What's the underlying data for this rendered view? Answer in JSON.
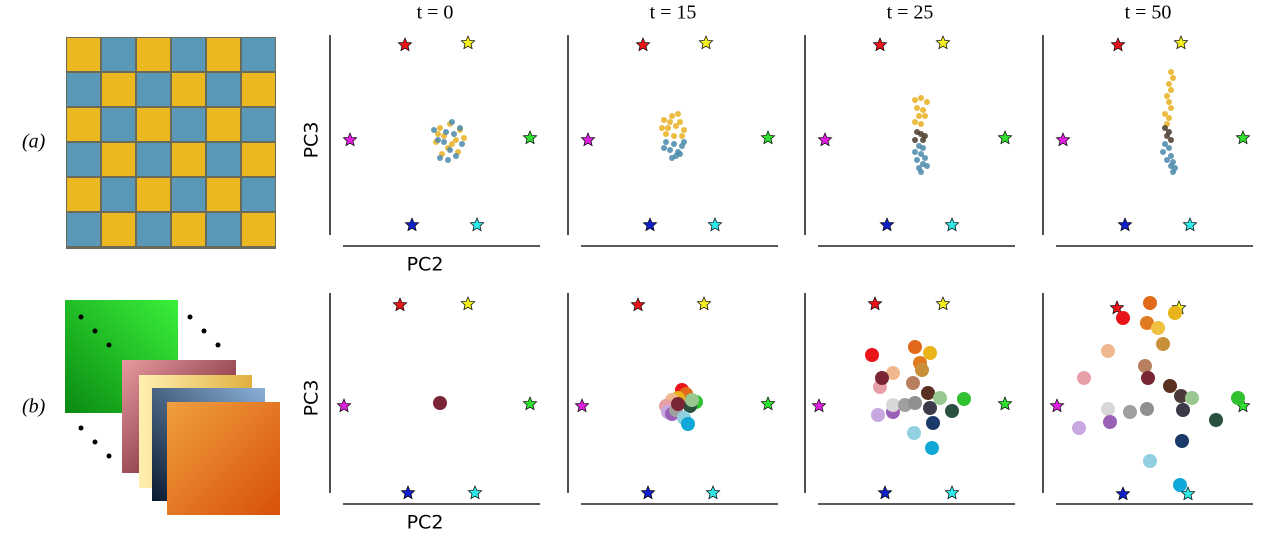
{
  "row_labels": [
    "(a)",
    "(b)"
  ],
  "chart_data": [
    {
      "type": "scatter",
      "title": "t = 0",
      "xlabel": "PC2",
      "ylabel": "PC3",
      "xlim": [
        0,
        10
      ],
      "ylim": [
        0,
        10
      ],
      "series": [
        {
          "marker": "star",
          "marker_size": 7,
          "x": [
            3.25,
            6.4,
            0.5,
            9.5,
            3.6,
            6.85
          ],
          "y": [
            9.75,
            9.85,
            5.0,
            5.1,
            0.75,
            0.75
          ],
          "colors": [
            "#e8141a",
            "#f5f020",
            "#e020e0",
            "#30e030",
            "#1020c8",
            "#30e8e8"
          ]
        },
        {
          "marker": "circle",
          "marker_size": 3,
          "color": "#e8b020",
          "x": [
            5.0,
            5.5,
            6.0,
            5.2,
            5.8,
            4.8,
            6.2,
            5.4,
            5.9,
            5.1,
            5.6,
            4.9
          ],
          "y": [
            5.6,
            5.8,
            5.5,
            5.2,
            5.0,
            4.9,
            5.1,
            4.6,
            4.4,
            4.3,
            4.8,
            5.3
          ]
        },
        {
          "marker": "circle",
          "marker_size": 3,
          "color": "#4a8aaa",
          "x": [
            5.3,
            5.7,
            4.9,
            6.1,
            5.5,
            5.0,
            5.8,
            5.2,
            6.0,
            4.7,
            5.4,
            5.6
          ],
          "y": [
            5.4,
            5.3,
            5.0,
            4.8,
            4.5,
            4.1,
            4.2,
            4.9,
            5.6,
            5.5,
            4.0,
            5.9
          ]
        }
      ]
    },
    {
      "type": "scatter",
      "title": "t = 15",
      "xlim": [
        0,
        10
      ],
      "ylim": [
        0,
        10
      ],
      "series": [
        {
          "marker": "star",
          "marker_size": 7,
          "x": [
            3.25,
            6.4,
            0.5,
            9.5,
            3.6,
            6.85
          ],
          "y": [
            9.75,
            9.85,
            5.0,
            5.1,
            0.75,
            0.75
          ],
          "colors": [
            "#e8141a",
            "#f5f020",
            "#e020e0",
            "#30e030",
            "#1020c8",
            "#30e8e8"
          ]
        },
        {
          "marker": "circle",
          "marker_size": 3,
          "color": "#4a8aaa",
          "x": [
            4.4,
            4.8,
            5.2,
            4.6,
            5.0,
            4.3,
            4.9,
            5.3,
            4.7,
            5.1
          ],
          "y": [
            4.9,
            4.8,
            4.7,
            4.5,
            4.4,
            4.6,
            4.2,
            4.9,
            4.1,
            4.3
          ]
        },
        {
          "marker": "circle",
          "marker_size": 3,
          "color": "#e8b020",
          "x": [
            4.3,
            4.7,
            5.1,
            4.5,
            4.9,
            5.3,
            4.4,
            4.8,
            5.2,
            4.6,
            5.0,
            4.2
          ],
          "y": [
            6.0,
            6.2,
            5.9,
            5.6,
            5.7,
            5.5,
            5.3,
            5.2,
            5.2,
            5.9,
            6.3,
            5.6
          ]
        }
      ]
    },
    {
      "type": "scatter",
      "title": "t = 25",
      "xlim": [
        0,
        10
      ],
      "ylim": [
        0,
        10
      ],
      "series": [
        {
          "marker": "star",
          "marker_size": 7,
          "x": [
            3.25,
            6.4,
            0.5,
            9.5,
            3.6,
            6.85
          ],
          "y": [
            9.75,
            9.85,
            5.0,
            5.1,
            0.75,
            0.75
          ],
          "colors": [
            "#e8141a",
            "#f5f020",
            "#e020e0",
            "#30e030",
            "#1020c8",
            "#30e8e8"
          ]
        },
        {
          "marker": "circle",
          "marker_size": 3,
          "color": "#e8b020",
          "x": [
            5.0,
            5.3,
            5.6,
            5.1,
            5.4,
            5.2,
            5.5,
            5.0,
            5.3
          ],
          "y": [
            7.0,
            7.1,
            6.9,
            6.6,
            6.5,
            6.2,
            6.2,
            5.9,
            5.8
          ]
        },
        {
          "marker": "circle",
          "marker_size": 3,
          "color": "#4a3a2a",
          "x": [
            5.1,
            5.3,
            5.5,
            5.0,
            5.4
          ],
          "y": [
            5.4,
            5.3,
            5.2,
            5.0,
            5.0
          ]
        },
        {
          "marker": "circle",
          "marker_size": 3,
          "color": "#4a8aaa",
          "x": [
            5.2,
            5.4,
            5.0,
            5.3,
            5.5,
            5.1,
            5.4,
            5.2,
            5.6,
            5.3
          ],
          "y": [
            4.7,
            4.6,
            4.4,
            4.3,
            4.1,
            4.0,
            3.8,
            3.6,
            3.7,
            3.4
          ]
        }
      ]
    },
    {
      "type": "scatter",
      "title": "t = 50",
      "xlim": [
        0,
        10
      ],
      "ylim": [
        0,
        10
      ],
      "series": [
        {
          "marker": "star",
          "marker_size": 7,
          "x": [
            3.25,
            6.4,
            0.5,
            9.5,
            3.6,
            6.85
          ],
          "y": [
            9.75,
            9.85,
            5.0,
            5.1,
            0.75,
            0.75
          ],
          "colors": [
            "#e8141a",
            "#f5f020",
            "#e020e0",
            "#30e030",
            "#1020c8",
            "#30e8e8"
          ]
        },
        {
          "marker": "circle",
          "marker_size": 3,
          "color": "#e8b020",
          "x": [
            5.9,
            6.0,
            5.8,
            5.9,
            5.7,
            5.8,
            5.9,
            5.6,
            5.8,
            5.7
          ],
          "y": [
            8.4,
            8.1,
            7.8,
            7.5,
            7.2,
            6.9,
            6.6,
            6.3,
            6.1,
            5.8
          ]
        },
        {
          "marker": "circle",
          "marker_size": 3,
          "color": "#4a3a2a",
          "x": [
            5.6,
            5.8,
            5.7,
            5.9
          ],
          "y": [
            5.6,
            5.4,
            5.2,
            5.0
          ]
        },
        {
          "marker": "circle",
          "marker_size": 3,
          "color": "#4a8aaa",
          "x": [
            5.6,
            5.8,
            5.5,
            5.9,
            5.7,
            6.0,
            5.9,
            6.1,
            6.0
          ],
          "y": [
            4.8,
            4.6,
            4.4,
            4.2,
            4.0,
            3.9,
            3.7,
            3.6,
            3.4
          ]
        }
      ]
    },
    {
      "type": "scatter",
      "xlabel": "PC2",
      "ylabel": "PC3",
      "xlim": [
        0,
        10
      ],
      "ylim": [
        0,
        10
      ],
      "series": [
        {
          "marker": "star",
          "marker_size": 7,
          "x": [
            3.0,
            6.4,
            0.2,
            9.5,
            3.4,
            6.75
          ],
          "y": [
            9.65,
            9.7,
            4.6,
            4.7,
            0.25,
            0.25
          ],
          "colors": [
            "#e8141a",
            "#f5f020",
            "#e020e0",
            "#30e030",
            "#1020c8",
            "#30e8e8"
          ]
        },
        {
          "marker": "circle",
          "marker_size": 7,
          "x": [
            5.0
          ],
          "y": [
            4.75
          ],
          "colors": [
            "#7a2535"
          ]
        }
      ]
    },
    {
      "type": "scatter",
      "xlim": [
        0,
        10
      ],
      "ylim": [
        0,
        10
      ],
      "series": [
        {
          "marker": "star",
          "marker_size": 7,
          "x": [
            3.0,
            6.3,
            0.2,
            9.5,
            3.5,
            6.75
          ],
          "y": [
            9.65,
            9.7,
            4.6,
            4.7,
            0.25,
            0.25
          ],
          "colors": [
            "#e8141a",
            "#f5f020",
            "#e020e0",
            "#30e030",
            "#1020c8",
            "#30e8e8"
          ]
        },
        {
          "marker": "circle",
          "marker_size": 7,
          "x": [
            5.2,
            5.4,
            5.0,
            4.7,
            4.4,
            4.5,
            4.7,
            4.9,
            5.9,
            5.6,
            5.3,
            5.5,
            5.0,
            5.7
          ],
          "y": [
            5.4,
            5.2,
            5.0,
            4.9,
            4.6,
            4.3,
            4.2,
            4.4,
            4.8,
            4.6,
            4.0,
            3.7,
            4.7,
            4.9
          ],
          "colors": [
            "#e8141a",
            "#e06a1a",
            "#e8b41a",
            "#f0b890",
            "#e8a0a8",
            "#c8a8e0",
            "#9a60b8",
            "#a0a0a0",
            "#30c030",
            "#2a5040",
            "#90d0e0",
            "#10a8d8",
            "#7a2535",
            "#98c890"
          ]
        }
      ]
    },
    {
      "type": "scatter",
      "xlim": [
        0,
        10
      ],
      "ylim": [
        0,
        10
      ],
      "series": [
        {
          "marker": "star",
          "marker_size": 7,
          "x": [
            3.0,
            6.4,
            0.2,
            9.5,
            3.5,
            6.85
          ],
          "y": [
            9.7,
            9.7,
            4.6,
            4.7,
            0.25,
            0.25
          ],
          "colors": [
            "#e8141a",
            "#f5f020",
            "#e020e0",
            "#30e030",
            "#1020c8",
            "#30e8e8"
          ]
        },
        {
          "marker": "circle",
          "marker_size": 7,
          "x": [
            2.85,
            5.0,
            5.75,
            5.25,
            5.35,
            3.9,
            3.25,
            3.35,
            4.9,
            5.65,
            3.15,
            3.9,
            3.9,
            4.5,
            5.0,
            5.75,
            6.85,
            7.45,
            6.25,
            5.9,
            4.95,
            5.85
          ],
          "y": [
            7.15,
            7.55,
            7.25,
            6.75,
            6.4,
            6.25,
            5.55,
            6.0,
            5.75,
            5.25,
            4.15,
            4.3,
            4.65,
            4.65,
            4.75,
            4.5,
            4.35,
            4.95,
            5.0,
            3.75,
            3.25,
            2.5
          ],
          "colors": [
            "#e8141a",
            "#e06a1a",
            "#e8b41a",
            "#e07a20",
            "#c8903a",
            "#f0b890",
            "#e8a0a8",
            "#7a2535",
            "#b88060",
            "#5a3020",
            "#c8a8e0",
            "#9a60b8",
            "#d8d8d8",
            "#a0a0a0",
            "#909090",
            "#3a3a4a",
            "#2a5040",
            "#30c030",
            "#98c890",
            "#1a3a6a",
            "#90d0e0",
            "#10a8d8"
          ]
        }
      ]
    },
    {
      "type": "scatter",
      "xlim": [
        0,
        10
      ],
      "ylim": [
        0,
        10
      ],
      "series": [
        {
          "marker": "star",
          "marker_size": 7,
          "x": [
            3.2,
            6.3,
            0.2,
            9.5,
            3.5,
            6.75
          ],
          "y": [
            9.5,
            9.5,
            4.6,
            4.6,
            0.2,
            0.2
          ],
          "colors": [
            "#e8141a",
            "#f5f020",
            "#e020e0",
            "#30e030",
            "#1020c8",
            "#30e8e8"
          ]
        },
        {
          "marker": "circle",
          "marker_size": 7,
          "x": [
            3.5,
            4.85,
            4.7,
            6.1,
            5.25,
            5.5,
            2.75,
            1.55,
            4.6,
            4.75,
            5.85,
            2.75,
            1.3,
            2.85,
            3.85,
            4.7,
            6.5,
            6.4,
            6.95,
            8.15,
            9.25,
            6.45,
            4.85,
            6.35
          ],
          "y": [
            9.0,
            9.75,
            8.75,
            9.25,
            8.5,
            7.7,
            7.35,
            6.0,
            6.6,
            6.0,
            5.6,
            4.45,
            3.5,
            3.8,
            4.3,
            4.45,
            4.4,
            5.1,
            5.0,
            3.9,
            5.0,
            2.85,
            1.85,
            0.65
          ],
          "colors": [
            "#e8141a",
            "#e06a1a",
            "#e07a20",
            "#e8b41a",
            "#f0c040",
            "#c8903a",
            "#f0b890",
            "#e8a0a8",
            "#b88060",
            "#7a2535",
            "#5a3020",
            "#d8d8d8",
            "#c8a8e0",
            "#9a60b8",
            "#a0a0a0",
            "#909090",
            "#3a3a4a",
            "#4a3a3a",
            "#98c890",
            "#2a5040",
            "#30c030",
            "#1a3a6a",
            "#90d0e0",
            "#10a8d8"
          ]
        }
      ]
    }
  ]
}
